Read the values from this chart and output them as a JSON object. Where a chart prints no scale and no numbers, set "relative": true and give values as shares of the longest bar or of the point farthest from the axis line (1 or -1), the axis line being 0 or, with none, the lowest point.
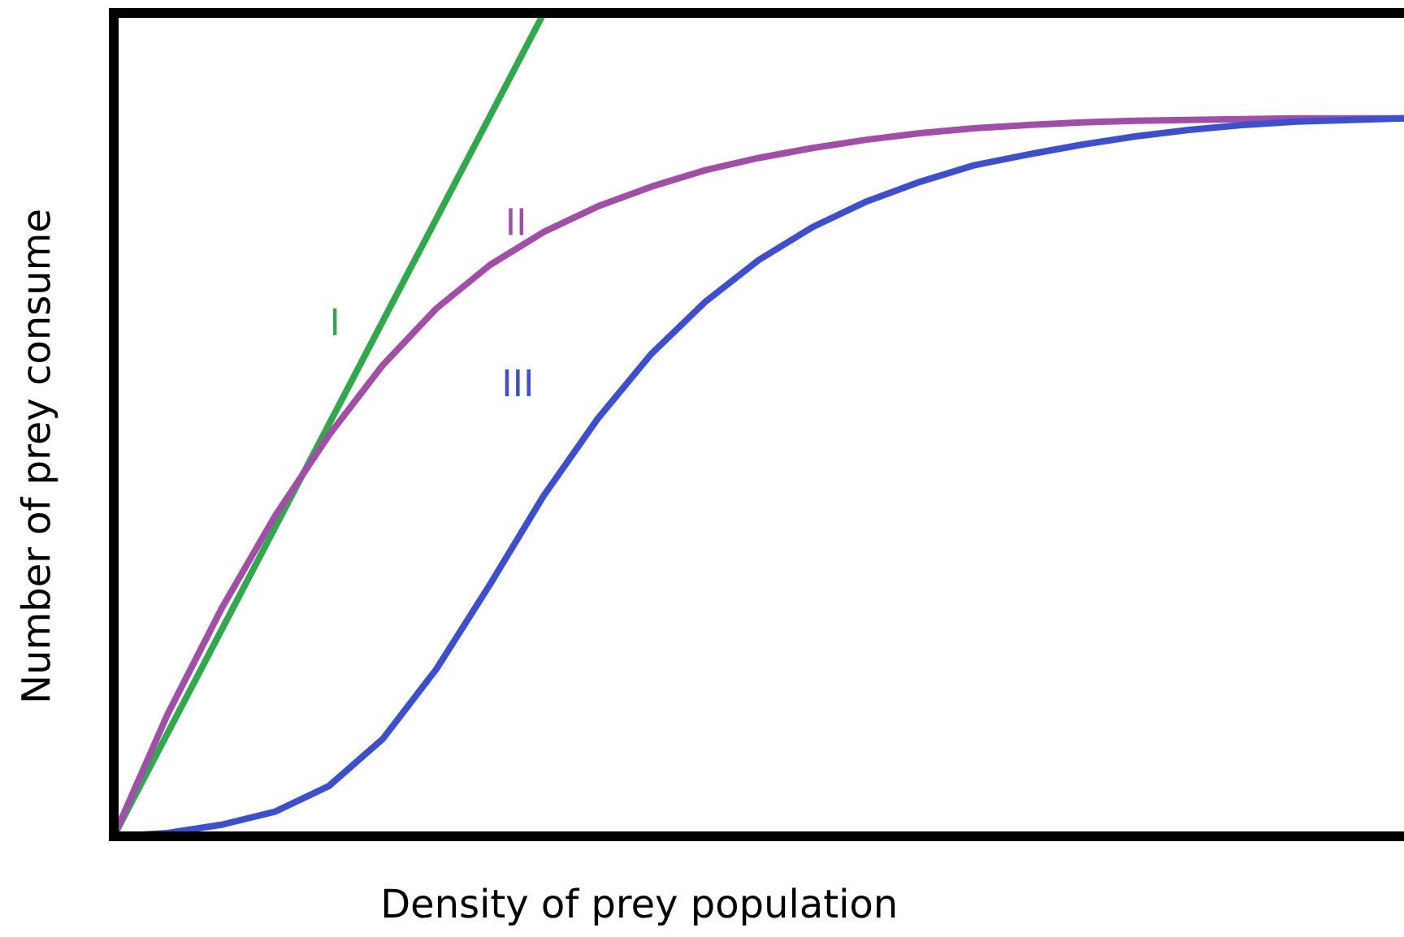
{
  "chart_data": {
    "type": "line",
    "relative": true,
    "xlabel": "Density of prey population",
    "ylabel": "Number of prey consume",
    "categories": [
      null,
      null,
      null,
      null,
      null,
      null,
      null,
      null,
      null,
      null,
      null,
      null,
      null,
      null,
      null,
      null,
      null,
      null,
      null,
      null,
      null,
      null,
      null,
      null,
      null
    ],
    "series": [
      {
        "name": "I",
        "color": "#2eaa4a",
        "values": [
          0,
          0.125,
          0.25,
          0.375,
          0.5,
          0.625,
          0.75,
          0.875,
          1,
          null,
          null,
          null,
          null,
          null,
          null,
          null,
          null,
          null,
          null,
          null,
          null,
          null,
          null,
          null,
          null
        ]
      },
      {
        "name": "II",
        "color": "#a24ea8",
        "values": [
          0,
          0.148,
          0.276,
          0.389,
          0.487,
          0.572,
          0.641,
          0.694,
          0.734,
          0.765,
          0.789,
          0.809,
          0.824,
          0.836,
          0.846,
          0.854,
          0.86,
          0.864,
          0.867,
          0.869,
          0.87,
          0.871,
          0.872,
          0.872,
          0.872
        ]
      },
      {
        "name": "III",
        "color": "#3c4fd0",
        "values": [
          0,
          0.004,
          0.014,
          0.03,
          0.061,
          0.118,
          0.203,
          0.306,
          0.414,
          0.507,
          0.586,
          0.649,
          0.7,
          0.74,
          0.771,
          0.795,
          0.815,
          0.828,
          0.84,
          0.85,
          0.858,
          0.864,
          0.868,
          0.87,
          0.872
        ]
      }
    ]
  }
}
